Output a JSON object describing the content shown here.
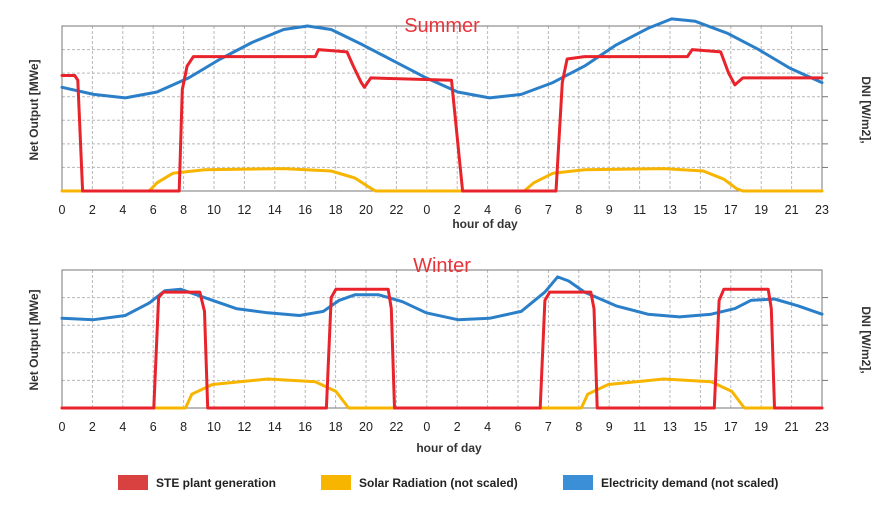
{
  "chart_data": [
    {
      "type": "line",
      "title": "Summer",
      "xlabel": "hour of day",
      "ylabel_left": "Net Output [MWe]",
      "ylabel_right": "DNI [W/m2],",
      "tick_labels": [
        "0",
        "2",
        "4",
        "6",
        "8",
        "10",
        "12",
        "14",
        "16",
        "18",
        "20",
        "22",
        "0",
        "2",
        "4",
        "6",
        "7",
        "8",
        "9",
        "11",
        "13",
        "15",
        "17",
        "19",
        "21",
        "23"
      ],
      "xlim": [
        0,
        48
      ],
      "ylim": [
        0,
        7
      ],
      "grid": true,
      "colors": {
        "STE plant generation": "#e8232b",
        "Solar Radiation (not scaled)": "#f7b500",
        "Electricity demand (not scaled)": "#2b7fc9"
      },
      "series": [
        {
          "name": "STE plant generation",
          "points": [
            [
              0,
              4.9
            ],
            [
              0.8,
              4.9
            ],
            [
              1.0,
              4.7
            ],
            [
              1.3,
              0
            ],
            [
              7.4,
              0
            ],
            [
              7.6,
              4.3
            ],
            [
              7.9,
              5.3
            ],
            [
              8.3,
              5.7
            ],
            [
              16,
              5.7
            ],
            [
              16.2,
              6.0
            ],
            [
              18,
              5.9
            ],
            [
              18.4,
              5.3
            ],
            [
              18.9,
              4.6
            ],
            [
              19.1,
              4.4
            ],
            [
              19.5,
              4.8
            ],
            [
              24.6,
              4.7
            ],
            [
              25.3,
              0
            ],
            [
              31.2,
              0
            ],
            [
              31.6,
              4.6
            ],
            [
              31.9,
              5.6
            ],
            [
              33,
              5.7
            ],
            [
              39.5,
              5.7
            ],
            [
              39.8,
              6.0
            ],
            [
              41.6,
              5.9
            ],
            [
              42.1,
              5.0
            ],
            [
              42.5,
              4.5
            ],
            [
              43,
              4.8
            ],
            [
              48,
              4.8
            ]
          ]
        },
        {
          "name": "Solar Radiation (not scaled)",
          "points": [
            [
              0,
              0
            ],
            [
              5.5,
              0
            ],
            [
              6,
              0.35
            ],
            [
              7,
              0.75
            ],
            [
              9,
              0.9
            ],
            [
              14,
              0.95
            ],
            [
              17,
              0.85
            ],
            [
              18.5,
              0.55
            ],
            [
              19.3,
              0.2
            ],
            [
              19.8,
              0
            ],
            [
              29.2,
              0
            ],
            [
              29.8,
              0.35
            ],
            [
              31,
              0.75
            ],
            [
              33,
              0.9
            ],
            [
              38,
              0.95
            ],
            [
              40.5,
              0.85
            ],
            [
              41.8,
              0.5
            ],
            [
              42.6,
              0.1
            ],
            [
              43,
              0
            ],
            [
              48,
              0
            ]
          ]
        },
        {
          "name": "Electricity demand (not scaled)",
          "points": [
            [
              0,
              4.4
            ],
            [
              2,
              4.1
            ],
            [
              4,
              3.95
            ],
            [
              6,
              4.2
            ],
            [
              8,
              4.8
            ],
            [
              10,
              5.6
            ],
            [
              12,
              6.3
            ],
            [
              14,
              6.85
            ],
            [
              15.5,
              7.0
            ],
            [
              17,
              6.85
            ],
            [
              19,
              6.2
            ],
            [
              21,
              5.5
            ],
            [
              23,
              4.8
            ],
            [
              25,
              4.2
            ],
            [
              27,
              3.95
            ],
            [
              29,
              4.1
            ],
            [
              31,
              4.6
            ],
            [
              33,
              5.3
            ],
            [
              35,
              6.2
            ],
            [
              37,
              6.9
            ],
            [
              38.5,
              7.3
            ],
            [
              40,
              7.2
            ],
            [
              42,
              6.7
            ],
            [
              44,
              6.0
            ],
            [
              46,
              5.2
            ],
            [
              48,
              4.6
            ]
          ]
        }
      ]
    },
    {
      "type": "line",
      "title": "Winter",
      "xlabel": "hour of day",
      "ylabel_left": "Net Output [MWe]",
      "ylabel_right": "DNI [W/m2],",
      "tick_labels": [
        "0",
        "2",
        "4",
        "6",
        "8",
        "10",
        "12",
        "14",
        "16",
        "18",
        "20",
        "22",
        "0",
        "2",
        "4",
        "6",
        "7",
        "8",
        "9",
        "11",
        "13",
        "15",
        "17",
        "19",
        "21",
        "23"
      ],
      "xlim": [
        0,
        48
      ],
      "ylim": [
        0,
        5
      ],
      "grid": true,
      "series": [
        {
          "name": "STE plant generation",
          "points": [
            [
              0,
              0
            ],
            [
              5.8,
              0
            ],
            [
              6.1,
              4.0
            ],
            [
              6.4,
              4.2
            ],
            [
              8.7,
              4.2
            ],
            [
              9.0,
              3.5
            ],
            [
              9.2,
              0
            ],
            [
              16.7,
              0
            ],
            [
              17.0,
              4.0
            ],
            [
              17.3,
              4.3
            ],
            [
              20.6,
              4.3
            ],
            [
              20.8,
              3.6
            ],
            [
              21,
              0
            ],
            [
              30.2,
              0
            ],
            [
              30.5,
              3.9
            ],
            [
              30.8,
              4.2
            ],
            [
              33.4,
              4.2
            ],
            [
              33.6,
              3.6
            ],
            [
              33.8,
              0
            ],
            [
              41.2,
              0
            ],
            [
              41.5,
              3.9
            ],
            [
              41.8,
              4.3
            ],
            [
              44.6,
              4.3
            ],
            [
              44.8,
              3.6
            ],
            [
              45,
              0
            ],
            [
              48,
              0
            ]
          ]
        },
        {
          "name": "Solar Radiation (not scaled)",
          "points": [
            [
              0,
              0
            ],
            [
              7.8,
              0
            ],
            [
              8.2,
              0.5
            ],
            [
              9.5,
              0.85
            ],
            [
              13,
              1.05
            ],
            [
              16,
              0.95
            ],
            [
              17.3,
              0.6
            ],
            [
              18.1,
              0
            ],
            [
              32.8,
              0
            ],
            [
              33.2,
              0.5
            ],
            [
              34.5,
              0.85
            ],
            [
              38,
              1.05
            ],
            [
              41,
              0.95
            ],
            [
              42.3,
              0.6
            ],
            [
              43.1,
              0
            ],
            [
              48,
              0
            ]
          ]
        },
        {
          "name": "Electricity demand (not scaled)",
          "points": [
            [
              0,
              3.25
            ],
            [
              2,
              3.2
            ],
            [
              4,
              3.35
            ],
            [
              5.5,
              3.8
            ],
            [
              6.5,
              4.25
            ],
            [
              7.5,
              4.3
            ],
            [
              9,
              4.0
            ],
            [
              11,
              3.6
            ],
            [
              13,
              3.45
            ],
            [
              15,
              3.35
            ],
            [
              16.5,
              3.5
            ],
            [
              17.5,
              3.9
            ],
            [
              18.5,
              4.1
            ],
            [
              20,
              4.1
            ],
            [
              21.5,
              3.85
            ],
            [
              23,
              3.45
            ],
            [
              25,
              3.2
            ],
            [
              27,
              3.25
            ],
            [
              29,
              3.5
            ],
            [
              30.5,
              4.2
            ],
            [
              31.3,
              4.75
            ],
            [
              32,
              4.6
            ],
            [
              33,
              4.2
            ],
            [
              35,
              3.7
            ],
            [
              37,
              3.4
            ],
            [
              39,
              3.3
            ],
            [
              41,
              3.4
            ],
            [
              42.5,
              3.6
            ],
            [
              43.5,
              3.9
            ],
            [
              45,
              3.95
            ],
            [
              46.5,
              3.7
            ],
            [
              48,
              3.4
            ]
          ]
        }
      ]
    }
  ],
  "legend": [
    {
      "label": "STE plant generation",
      "color": "#d94040"
    },
    {
      "label": "Solar Radiation (not scaled)",
      "color": "#f7b500"
    },
    {
      "label": "Electricity demand (not scaled)",
      "color": "#3b8fd6"
    }
  ]
}
